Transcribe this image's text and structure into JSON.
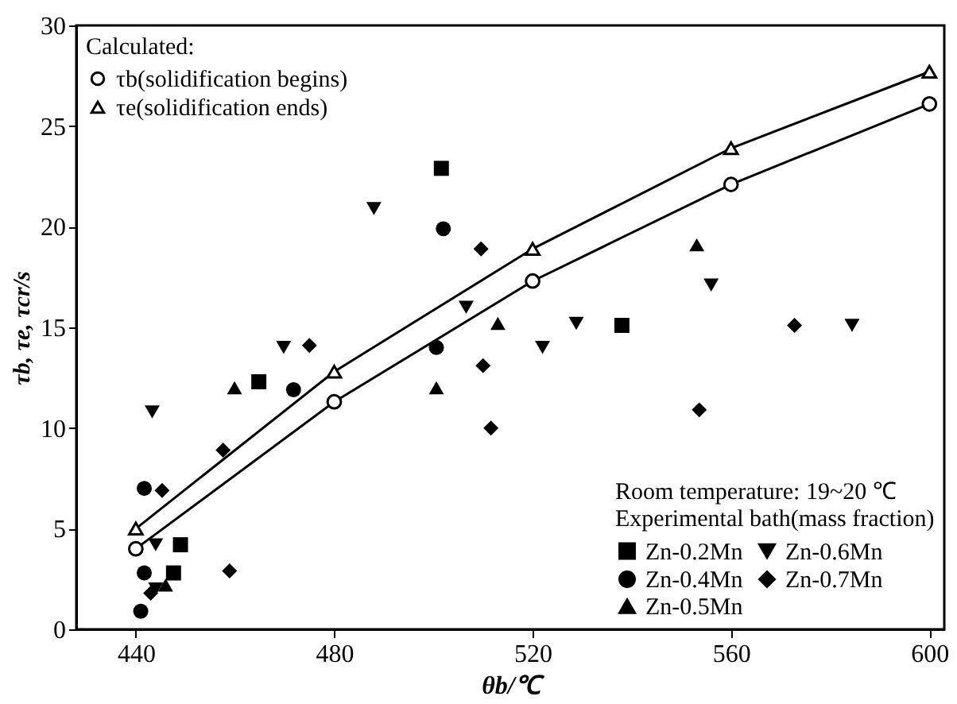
{
  "chart_data": {
    "type": "scatter",
    "xlabel": "θb/℃",
    "ylabel": "τb, τe, τcr/s",
    "legend_title": "Calculated:",
    "annotations": [
      "Room temperature: 19~20 ℃",
      "Experimental bath(mass fraction)"
    ],
    "xlim": [
      428,
      603
    ],
    "xticks": [
      440,
      480,
      520,
      560,
      600
    ],
    "ylim": [
      0,
      30
    ],
    "yticks": [
      0,
      5,
      10,
      15,
      20,
      25,
      30
    ],
    "grid": false,
    "legend": "bottom right",
    "series": [
      {
        "name": "τb(solidification begins)",
        "type": "line",
        "marker": "circle",
        "color": "#000000",
        "x": [
          440,
          480,
          520,
          560,
          600
        ],
        "values": [
          4,
          11.3,
          17.3,
          22.1,
          26.1
        ]
      },
      {
        "name": "τe(solidification ends)",
        "type": "line",
        "marker": "triangle",
        "color": "#000000",
        "x": [
          440,
          480,
          520,
          560,
          600
        ],
        "values": [
          5,
          12.8,
          18.9,
          23.9,
          27.7
        ]
      },
      {
        "name": "Zn-0.2Mn",
        "marker": "square",
        "color": "#000000",
        "x": [
          449,
          447.6,
          464.8,
          501.6,
          538
        ],
        "values": [
          4.2,
          2.8,
          12.3,
          22.9,
          15.1
        ]
      },
      {
        "name": "Zn-0.4Mn",
        "marker": "circle",
        "color": "#000000",
        "x": [
          441,
          441.7,
          441.7,
          471.8,
          500.6,
          502
        ],
        "values": [
          0.9,
          2.8,
          7.0,
          11.9,
          14.0,
          19.9
        ]
      },
      {
        "name": "Zn-0.5Mn",
        "marker": "triangle",
        "color": "#000000",
        "x": [
          446,
          459.9,
          500.6,
          513,
          553.1
        ],
        "values": [
          2.2,
          12.0,
          12.0,
          15.2,
          19.1
        ]
      },
      {
        "name": "Zn-0.6Mn",
        "marker": "triangle-down",
        "color": "#000000",
        "x": [
          444,
          443.3,
          444,
          469.8,
          488,
          506.6,
          522,
          528.8,
          556,
          584.4
        ],
        "values": [
          2.0,
          10.8,
          4.2,
          14.0,
          20.9,
          16.0,
          14.0,
          15.2,
          17.1,
          15.1
        ]
      },
      {
        "name": "Zn-0.7Mn",
        "marker": "diamond",
        "color": "#000000",
        "x": [
          443,
          445.3,
          457.6,
          458.9,
          475,
          509.6,
          510,
          511.6,
          553.6,
          572.8
        ],
        "values": [
          1.8,
          6.9,
          8.9,
          2.9,
          14.1,
          18.9,
          13.1,
          10.0,
          10.9,
          15.1
        ]
      }
    ]
  }
}
